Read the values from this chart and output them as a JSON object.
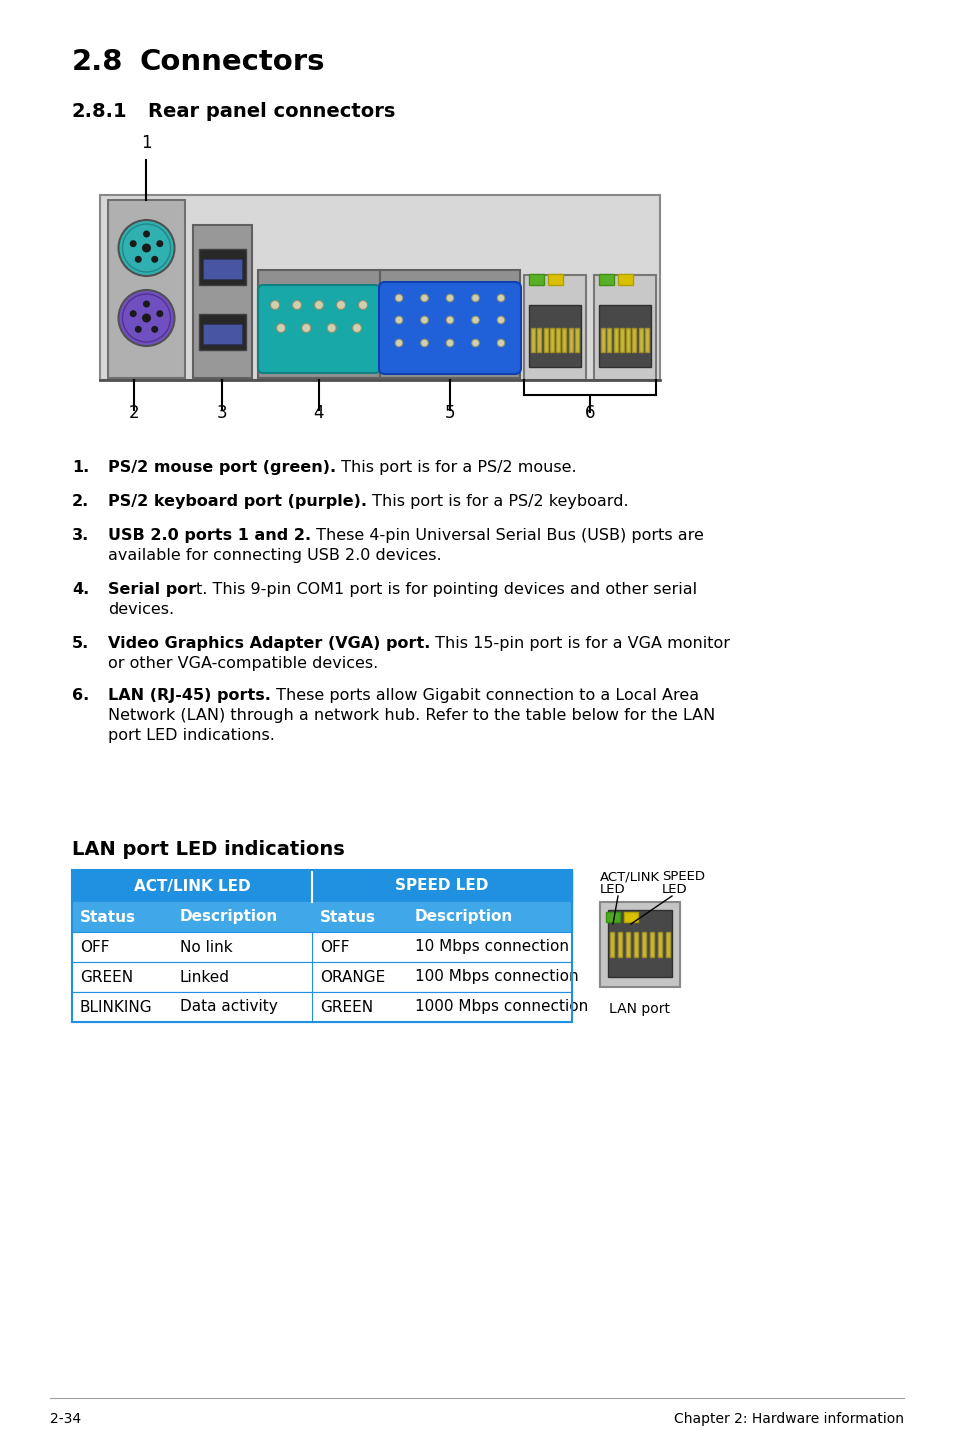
{
  "title": "2.8    Connectors",
  "subtitle": "2.8.1    Rear panel connectors",
  "section_lan": "LAN port LED indications",
  "bg_color": "#ffffff",
  "text_color": "#000000",
  "list_items": [
    {
      "num": "1.",
      "bold": "PS/2 mouse port (green).",
      "rest": " This port is for a PS/2 mouse.",
      "lines2": null
    },
    {
      "num": "2.",
      "bold": "PS/2 keyboard port (purple).",
      "rest": " This port is for a PS/2 keyboard.",
      "lines2": null
    },
    {
      "num": "3.",
      "bold": "USB 2.0 ports 1 and 2.",
      "rest": " These 4-pin Universal Serial Bus (USB) ports are",
      "lines2": "available for connecting USB 2.0 devices."
    },
    {
      "num": "4.",
      "bold": "Serial por",
      "rest": "t. This 9-pin COM1 port is for pointing devices and other serial",
      "lines2": "devices."
    },
    {
      "num": "5.",
      "bold": "Video Graphics Adapter (VGA) port.",
      "rest": " This 15-pin port is for a VGA monitor",
      "lines2": "or other VGA-compatible devices."
    },
    {
      "num": "6.",
      "bold": "LAN (RJ-45) ports.",
      "rest": " These ports allow Gigabit connection to a Local Area",
      "lines2": "Network (LAN) through a network hub. Refer to the table below for the LAN\nport LED indications."
    }
  ],
  "table_header1": "ACT/LINK LED",
  "table_header2": "SPEED LED",
  "table_col_headers": [
    "Status",
    "Description",
    "Status",
    "Description"
  ],
  "table_rows": [
    [
      "OFF",
      "No link",
      "OFF",
      "10 Mbps connection"
    ],
    [
      "GREEN",
      "Linked",
      "ORANGE",
      "100 Mbps connection"
    ],
    [
      "BLINKING",
      "Data activity",
      "GREEN",
      "1000 Mbps connection"
    ]
  ],
  "footer_left": "2-34",
  "footer_right": "Chapter 2: Hardware information",
  "lan_label": "LAN port"
}
